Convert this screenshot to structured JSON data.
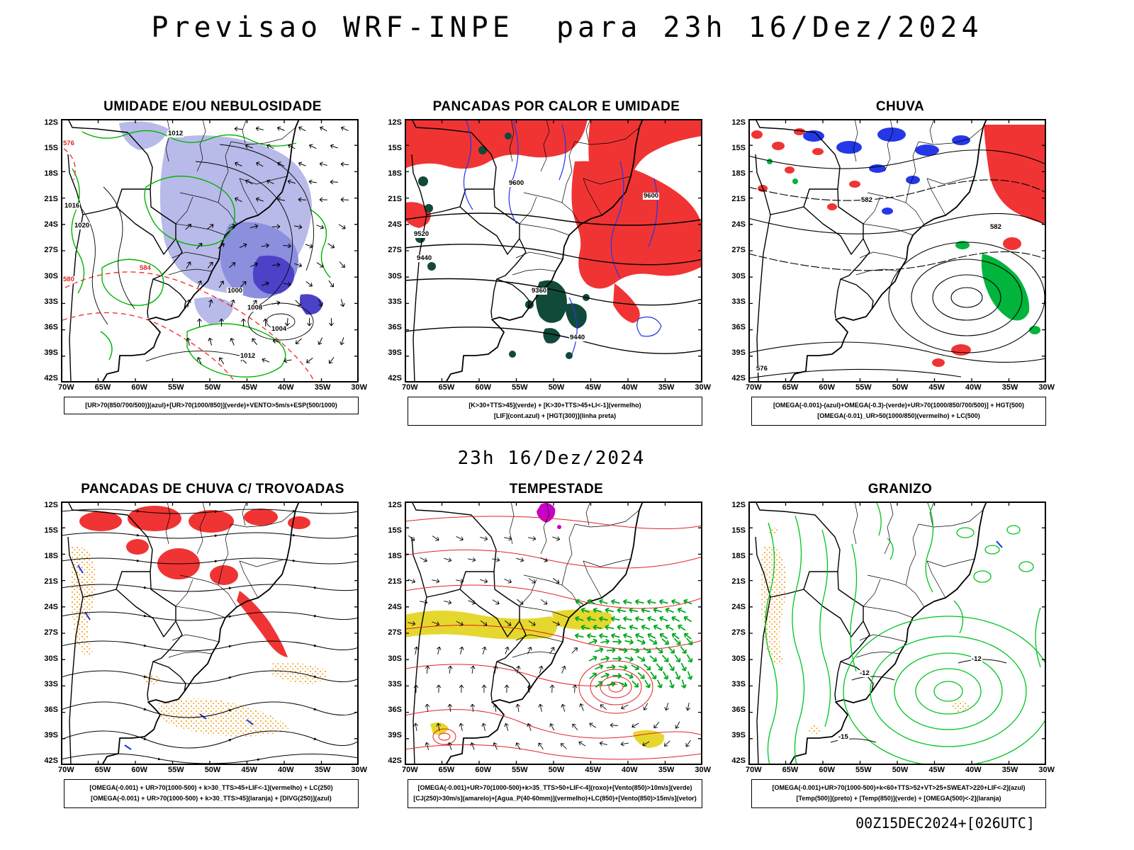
{
  "header": {
    "title": "Previsao WRF-INPE  para 23h 16/Dez/2024"
  },
  "middle_time_label": "23h 16/Dez/2024",
  "footer": {
    "run_label": "00Z15DEC2024+[026UTC]"
  },
  "axes": {
    "lat_ticks": [
      "12S",
      "15S",
      "18S",
      "21S",
      "24S",
      "27S",
      "30S",
      "33S",
      "36S",
      "39S",
      "42S"
    ],
    "lon_ticks": [
      "70W",
      "65W",
      "60W",
      "55W",
      "50W",
      "45W",
      "40W",
      "35W",
      "30W"
    ]
  },
  "colors": {
    "red_fill": "#f03434",
    "dark_green_fill": "#114a3a",
    "blue_fill": "#2438e8",
    "green_fill": "#00b43c",
    "yellow_fill": "#e6d72e",
    "magenta_fill": "#c800c8",
    "orange_speckle": "#f59300",
    "lavender_fill": "#b8bae9",
    "purple_fill": "#8c8ede",
    "deep_blue_fill": "#4b42c8",
    "green_contour": "#00b400",
    "red_contour": "#e32222",
    "blue_contour": "#2336ee",
    "green_arrow": "#00a81e"
  },
  "panels": [
    {
      "title": "UMIDADE E/OU NEBULOSIDADE",
      "caption_lines": [
        "[UR>70(850/700/500)](azul)+[UR>70(1000/850)](verde)+VENTO>5m/s+ESP(500/1000)"
      ],
      "labels": [
        "576",
        "580",
        "584",
        "1012",
        "1016",
        "1020",
        "1008",
        "1004",
        "1000",
        "1012"
      ]
    },
    {
      "title": "PANCADAS POR CALOR E UMIDADE",
      "caption_lines": [
        "[K>30+TTS>45](verde) + [K>30+TTS>45+LI<-1](vermelho)",
        "[LIF](cont.azul) + [HGT(300)](linha preta)"
      ],
      "labels": [
        "9600",
        "9600",
        "9520",
        "9440",
        "9360",
        "9440"
      ]
    },
    {
      "title": "CHUVA",
      "caption_lines": [
        "[OMEGA(-0.001)-(azul)+OMEGA(-0.3)-(verde)+UR>70(1000/850/700/500)] + HGT(500)",
        "[OMEGA(-0.01)_UR>50(1000/850)(vermelho) + LC(500)"
      ],
      "labels": [
        "582",
        "582",
        "576"
      ]
    },
    {
      "title": "PANCADAS DE CHUVA C/ TROVOADAS",
      "caption_lines": [
        "[OMEGA(-0.001) + UR>70(1000-500) + k>30_TTS>45+LIF<-1](vermelho) + LC(250)",
        "[OMEGA(-0.001) + UR>70(1000-500) + k>30_TTS>45](laranja) + [DIVG(250)](azul)"
      ],
      "labels": []
    },
    {
      "title": "TEMPESTADE",
      "caption_lines": [
        "[OMEGA(-0.001)+UR>70(1000-500)+k>35_TTS>50+LIF<-4](roxo)+[Vento(850)>10m/s](verde)",
        "[CJ(250)>30m/s](amarelo)+[Agua_P(40-60mm)](vermelho)+LC(850)+[Vento(850)>15m/s](vetor)"
      ],
      "labels": []
    },
    {
      "title": "GRANIZO",
      "caption_lines": [
        "[OMEGA(-0.001)+UR>70(1000-500)+k<60+TTS>52+VT>25+SWEAT>220+LIF<-2](azul)",
        "[Temp(500)](preto) + [Temp(850)](verde) + [OMEGA(500)<-2](laranja)"
      ],
      "labels": [
        "-12",
        "-12",
        "-15"
      ]
    }
  ]
}
